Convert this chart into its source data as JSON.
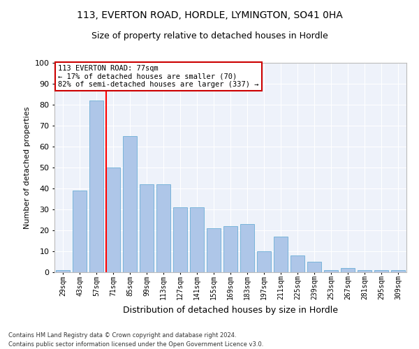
{
  "title1": "113, EVERTON ROAD, HORDLE, LYMINGTON, SO41 0HA",
  "title2": "Size of property relative to detached houses in Hordle",
  "xlabel": "Distribution of detached houses by size in Hordle",
  "ylabel": "Number of detached properties",
  "categories": [
    "29sqm",
    "43sqm",
    "57sqm",
    "71sqm",
    "85sqm",
    "99sqm",
    "113sqm",
    "127sqm",
    "141sqm",
    "155sqm",
    "169sqm",
    "183sqm",
    "197sqm",
    "211sqm",
    "225sqm",
    "239sqm",
    "253sqm",
    "267sqm",
    "281sqm",
    "295sqm",
    "309sqm"
  ],
  "values": [
    1,
    39,
    82,
    50,
    65,
    42,
    42,
    31,
    31,
    21,
    22,
    23,
    10,
    17,
    8,
    5,
    1,
    2,
    1,
    1,
    1
  ],
  "bar_color": "#aec6e8",
  "bar_edge_color": "#6baed6",
  "annotation_text": "113 EVERTON ROAD: 77sqm\n← 17% of detached houses are smaller (70)\n82% of semi-detached houses are larger (337) →",
  "annotation_box_color": "#ffffff",
  "annotation_box_edge_color": "#cc0000",
  "ylim": [
    0,
    100
  ],
  "yticks": [
    0,
    10,
    20,
    30,
    40,
    50,
    60,
    70,
    80,
    90,
    100
  ],
  "background_color": "#eef2fa",
  "footer1": "Contains HM Land Registry data © Crown copyright and database right 2024.",
  "footer2": "Contains public sector information licensed under the Open Government Licence v3.0.",
  "title1_fontsize": 10,
  "title2_fontsize": 9,
  "xlabel_fontsize": 9,
  "ylabel_fontsize": 8,
  "red_line_index": 3
}
